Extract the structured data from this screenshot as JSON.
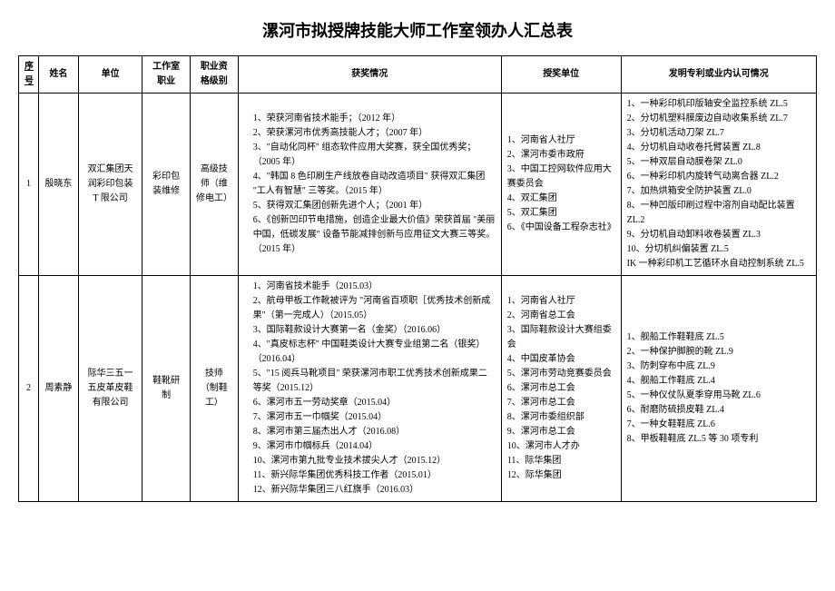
{
  "title": "漯河市拟授牌技能大师工作室领办人汇总表",
  "columns": {
    "seq": "序号",
    "name": "姓名",
    "unit": "单位",
    "occupation": "工作室职业",
    "level": "职业资格级别",
    "awards": "获奖情况",
    "org": "授奖单位",
    "patent": "发明专利或业内认可情况"
  },
  "rows": [
    {
      "seq": "1",
      "name": "殷晓东",
      "unit": "双汇集团天润彩印包装 T 限公司",
      "occupation": "彩印包装维修",
      "level": "高级技师（维修电工）",
      "awards": [
        "1、荣获河南省技术能手；（2012 年）",
        "2、荣获漯河市优秀高技能人才；（2007 年）",
        "3、\"自动化同杯\" 组态软件应用大奖赛，获全国优秀奖；（2005 年）",
        "4、\"韩国 8 色印刷生产线放卷自动改造项目\" 获得双汇集团 \"工人有智慧\" 三等奖。（2015 年）",
        "5、获得双汇集团创新先进个人；（2001 年）",
        "6、《创新凹印节电措施，创造企业最大价值》荣获首届 \"美丽中国，低碳发展\" 设备节能减排创新与应用征文大赛三等奖。（2015 年）"
      ],
      "orgs": [
        "1、河南省人社厅",
        "2、漯河市委市政府",
        "3、中国工控网软件应用大赛委员会",
        "4、双汇集团",
        "5、双汇集团",
        "6、《中国设备工程杂志社》"
      ],
      "patents": [
        "1、一种彩印机印版轴安全监控系统 ZL.5",
        "2、分切机塑料膜废边自动收集系统 ZL.7",
        "3、分切机活动刀架 ZL.7",
        "4、分切机自动收卷托臂装置 ZL.8",
        "5、一种双层自动膜卷架 ZL.0",
        "6、一种彩印机内旋转气动离合器 ZL.2",
        "7、加热烘箱安全防护装置 ZL.0",
        "8、一种凹版印刷过程中溶剂自动配比装置 ZL.2",
        "9、分切机自动卸料收卷装置 ZL.3",
        "10、分切机纠偏装置 ZL.5",
        "IK 一种彩印机工艺循环水自动控制系统 ZL.5"
      ]
    },
    {
      "seq": "2",
      "name": "周素静",
      "unit": "际华三五一五皮革皮鞋有限公司",
      "occupation": "鞋靴研制",
      "level": "技师（制鞋工）",
      "awards": [
        "1、河南省技术能手（2015.03）",
        "2、航母甲板工作靴被评为 \"河南省百项职［优秀技术创新成果\"（第一完成人）（2015.05）",
        "3、国际鞋款设计大赛第一名（金奖）（2016.06）",
        "4、\"真皮标志杯\" 中国鞋类设计大赛专业组第二名（银奖）（2016.04）",
        "5、\"15 阅兵马靴项目\" 荣获漯河市职工优秀技术创新成果二等奖（2015.12）",
        "6、漯河市五一劳动奖章（2015.04）",
        "7、漯河市五一巾帼奖（2015.04）",
        "8、漯河市第三届杰出人才（2016.08）",
        "9、漯河市巾帼标兵（2014.04）",
        "10、漯河市第九批专业技术拔尖人才（2015.12）",
        "11、新兴际华集团优秀科技工作者（2015.01）",
        "12、新兴际华集团三八红旗手（2016.03）"
      ],
      "orgs": [
        "1、河南省人社厅",
        "2、河南省总工会",
        "3、国际鞋款设计大赛组委会",
        "4、中国皮革协会",
        "5、漯河市劳动竞赛委员会",
        "6、漯河市总工会",
        "7、漯河市总工会",
        "8、漯河市委组织部",
        "9、漯河市总工会",
        "10、漯河市人才办",
        "11、际华集团",
        "12、际华集团"
      ],
      "patents": [
        "1、舰船工作鞋鞋底 ZL.5",
        "2、一种保护脚腕的靴 ZL.9",
        "3、防刺穿布中底 ZL.9",
        "4、舰船工作鞋底 ZL.4",
        "5、一种仪仗队夏季穿用马靴 ZL.6",
        "6、耐磨防硫损皮鞋 ZL.4",
        "7、一种女鞋鞋底 ZL.6",
        "8、甲板鞋鞋底 ZL.5 等 30 项专利"
      ]
    }
  ]
}
